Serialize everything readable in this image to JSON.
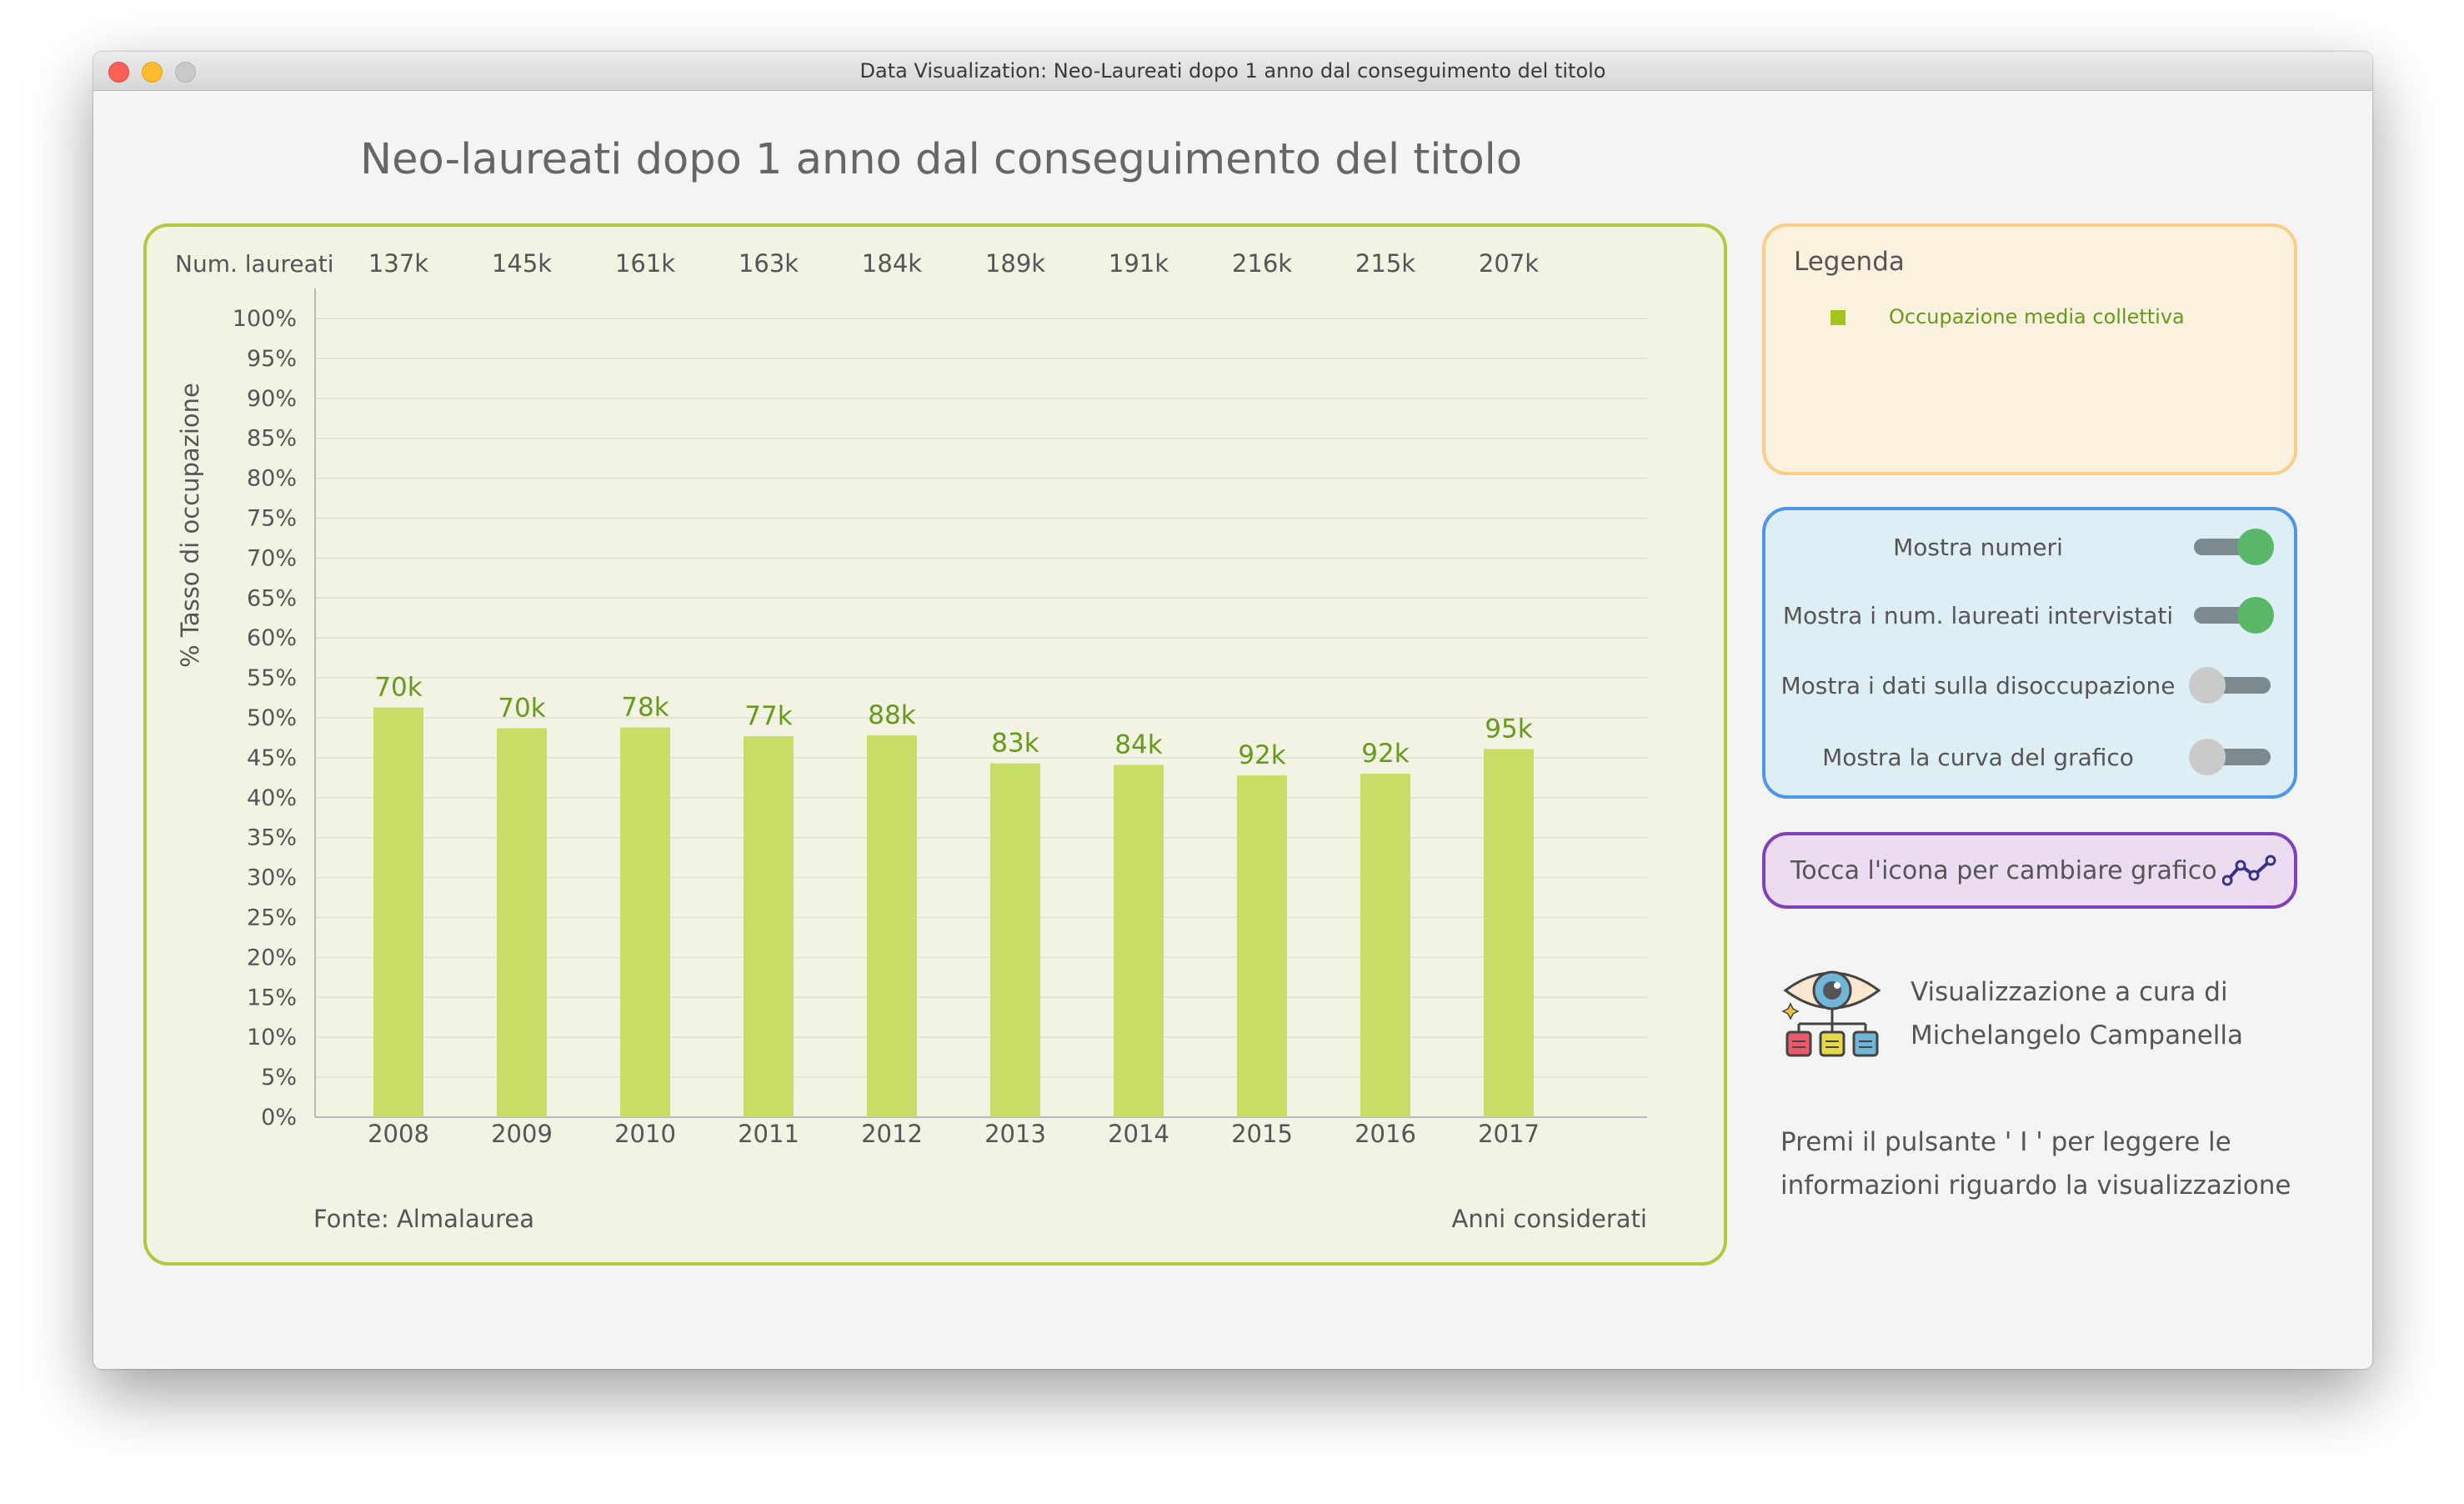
{
  "window": {
    "title": "Data Visualization: Neo-Laureati dopo 1 anno dal conseguimento del titolo"
  },
  "main_title": "Neo-laureati dopo 1 anno dal conseguimento del titolo",
  "chart_data": {
    "type": "bar",
    "title": "",
    "ylabel": "% Tasso di occupazione",
    "xlabel": "Anni considerati",
    "source": "Fonte: Almalaurea",
    "ylim": [
      0,
      100
    ],
    "yticks": [
      "0%",
      "5%",
      "10%",
      "15%",
      "20%",
      "25%",
      "30%",
      "35%",
      "40%",
      "45%",
      "50%",
      "55%",
      "60%",
      "65%",
      "70%",
      "75%",
      "80%",
      "85%",
      "90%",
      "95%",
      "100%"
    ],
    "grid": true,
    "categories": [
      "2008",
      "2009",
      "2010",
      "2011",
      "2012",
      "2013",
      "2014",
      "2015",
      "2016",
      "2017"
    ],
    "series": [
      {
        "name": "Occupazione media collettiva",
        "values": [
          51.3,
          48.7,
          48.8,
          47.7,
          47.8,
          44.3,
          44.1,
          42.8,
          43.0,
          46.1
        ]
      }
    ],
    "bar_labels": [
      "70k",
      "70k",
      "78k",
      "77k",
      "88k",
      "83k",
      "84k",
      "92k",
      "92k",
      "95k"
    ],
    "top_row_label": "Num. laureati",
    "top_row_values": [
      "137k",
      "145k",
      "161k",
      "163k",
      "184k",
      "189k",
      "191k",
      "216k",
      "215k",
      "207k"
    ],
    "colors": {
      "bar": "#c8dd66",
      "label": "#669a1a",
      "panel_border": "#b5c640"
    }
  },
  "legend": {
    "title": "Legenda",
    "entries": [
      {
        "label": "Occupazione media collettiva",
        "color": "#a4c51e"
      }
    ]
  },
  "controls": [
    {
      "label": "Mostra numeri",
      "on": true
    },
    {
      "label": "Mostra i num. laureati intervistati",
      "on": true
    },
    {
      "label": "Mostra i dati sulla disoccupazione",
      "on": false
    },
    {
      "label": "Mostra la curva del grafico",
      "on": false
    }
  ],
  "chart_switch": {
    "label": "Tocca l'icona per cambiare grafico",
    "icon": "line-chart-icon"
  },
  "credit": {
    "line1": "Visualizzazione a cura di",
    "line2": "Michelangelo Campanella",
    "icon": "eye-data-icon"
  },
  "info": {
    "line1": "Premi il pulsante ' I ' per leggere le",
    "line2": "informazioni riguardo la visualizzazione"
  }
}
